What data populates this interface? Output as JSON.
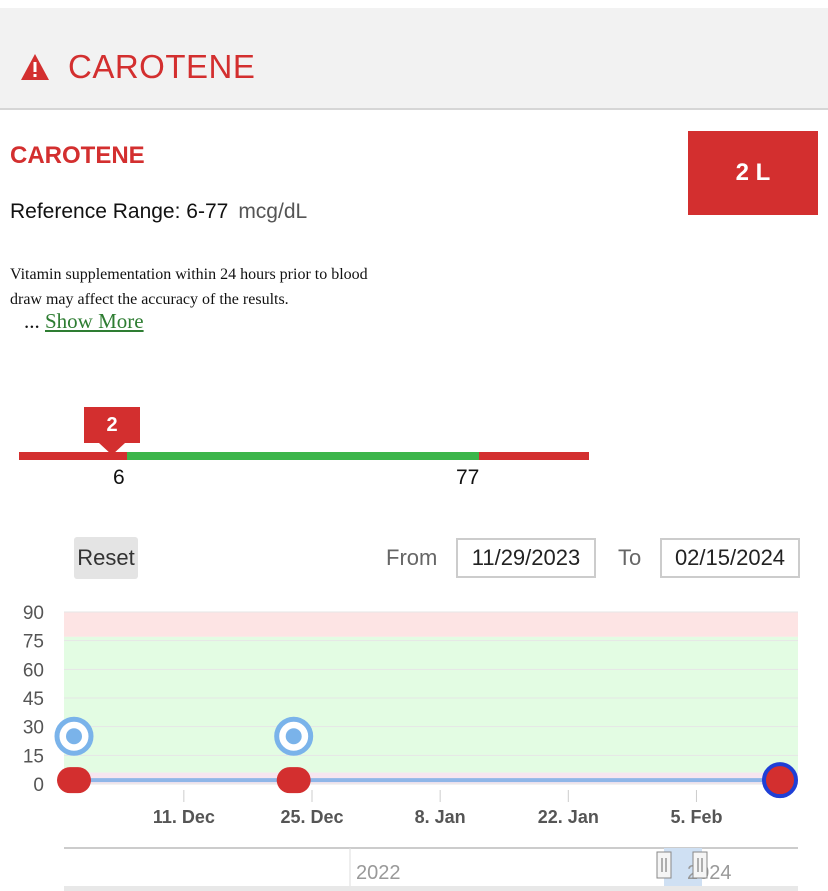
{
  "header": {
    "title": "CAROTENE",
    "icon": "warning-icon"
  },
  "test": {
    "name": "CAROTENE",
    "result": "2 L",
    "reference_label": "Reference Range: 6-77",
    "unit": "mcg/dL",
    "note": "Vitamin supplementation within 24 hours prior to blood draw may affect the accuracy of the results.",
    "ellipsis": "...",
    "show_more": "Show More"
  },
  "range_bar": {
    "value_label": "2",
    "low_label": "6",
    "high_label": "77",
    "colors": {
      "out_of_range": "#d32f2f",
      "normal": "#3cb54a"
    }
  },
  "controls": {
    "reset": "Reset",
    "from_label": "From",
    "from_value": "11/29/2023",
    "to_label": "To",
    "to_value": "02/15/2024"
  },
  "chart_data": {
    "type": "line",
    "y_ticks": [
      "90",
      "75",
      "60",
      "45",
      "30",
      "15",
      "0"
    ],
    "x_ticks": [
      "11. Dec",
      "25. Dec",
      "8. Jan",
      "22. Jan",
      "5. Feb"
    ],
    "ylim": [
      0,
      90
    ],
    "bands": [
      {
        "from": 77,
        "to": 90,
        "color": "#fde4e4"
      },
      {
        "from": 6,
        "to": 77,
        "color": "#e3fce3"
      }
    ],
    "series": [
      {
        "values": [
          {
            "x": "2023-11-29",
            "y": 2
          },
          {
            "x": "2023-12-23",
            "y": 2
          },
          {
            "x": "2024-02-15",
            "y": 2
          }
        ]
      }
    ],
    "markers_info": [
      {
        "x": "2023-11-29",
        "y": 25
      },
      {
        "x": "2023-12-23",
        "y": 25
      }
    ]
  },
  "navigator": {
    "labels": [
      "2022",
      "2024"
    ]
  }
}
